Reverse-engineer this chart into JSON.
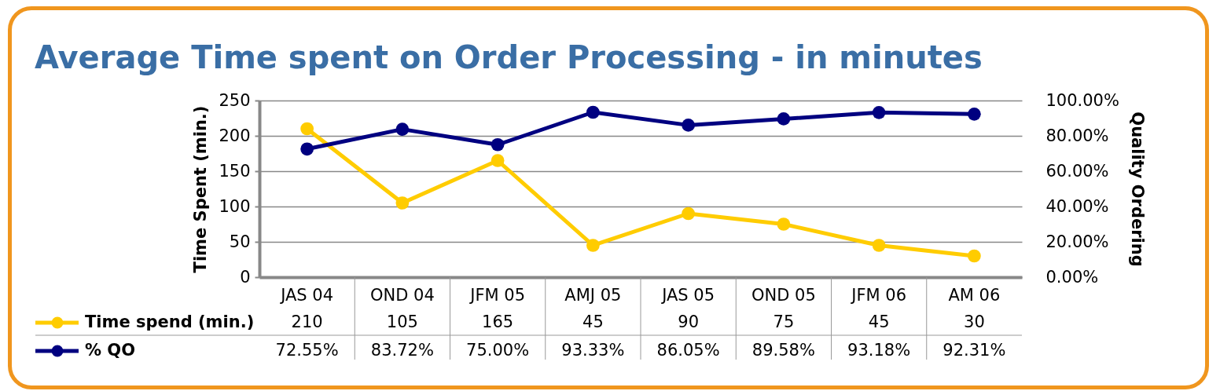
{
  "chart_data": {
    "type": "line",
    "title": "Average Time spent on Order Processing - in minutes",
    "ylabel": "Time Spent (min.)",
    "y2label": "Quality Ordering",
    "categories": [
      "JAS 04",
      "OND 04",
      "JFM 05",
      "AMJ 05",
      "JAS 05",
      "OND 05",
      "JFM 06",
      "AM 06"
    ],
    "series": [
      {
        "name": "Time spend (min.)",
        "color": "#ffcc00",
        "values": [
          210,
          105,
          165,
          45,
          90,
          75,
          45,
          30
        ],
        "value_labels": [
          "210",
          "105",
          "165",
          "45",
          "90",
          "75",
          "45",
          "30"
        ]
      },
      {
        "name": "% QO",
        "color": "#000080",
        "axis": "y2",
        "values": [
          72.55,
          83.72,
          75.0,
          93.33,
          86.05,
          89.58,
          93.18,
          92.31
        ],
        "value_labels": [
          "72.55%",
          "83.72%",
          "75.00%",
          "93.33%",
          "86.05%",
          "89.58%",
          "93.18%",
          "92.31%"
        ]
      }
    ],
    "ylim": [
      0,
      250
    ],
    "yticks": [
      0,
      50,
      100,
      150,
      200,
      250
    ],
    "y2lim": [
      0,
      100
    ],
    "y2ticks": [
      {
        "value": 0,
        "label": "0.00%"
      },
      {
        "value": 20,
        "label": "20.00%"
      },
      {
        "value": 40,
        "label": "40.00%"
      },
      {
        "value": 60,
        "label": "60.00%"
      },
      {
        "value": 80,
        "label": "80.00%"
      },
      {
        "value": 100,
        "label": "100.00%"
      }
    ],
    "grid": "y",
    "legend": "bottom left",
    "marker": "circle",
    "line_style": "solid"
  }
}
